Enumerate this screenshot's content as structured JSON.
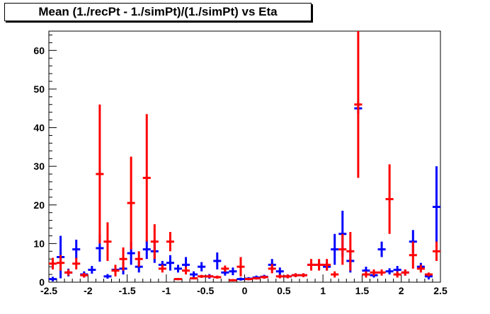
{
  "chart_data": {
    "type": "scatter",
    "title": "Mean (1./recPt - 1./simPt)/(1./simPt) vs Eta",
    "xlabel": "",
    "ylabel": "",
    "xlim": [
      -2.5,
      2.5
    ],
    "ylim": [
      0,
      65
    ],
    "x_ticks": [
      "-2.5",
      "-2",
      "-1.5",
      "-1",
      "-0.5",
      "0",
      "0.5",
      "1",
      "1.5",
      "2",
      "2.5"
    ],
    "y_ticks": [
      "0",
      "10",
      "20",
      "30",
      "40",
      "50",
      "60"
    ],
    "bin_width": 0.1,
    "grid": false,
    "legend": "none",
    "series": [
      {
        "color": "#0000ff",
        "points": [
          {
            "x": -2.45,
            "y": 0.8,
            "err": 0.6
          },
          {
            "x": -2.35,
            "y": 6.5,
            "err": 5.5
          },
          {
            "x": -2.25,
            "y": 2.5,
            "err": 1.0
          },
          {
            "x": -2.15,
            "y": 8.5,
            "err": 2.5
          },
          {
            "x": -2.05,
            "y": 2.0,
            "err": 0.8
          },
          {
            "x": -1.95,
            "y": 3.2,
            "err": 1.0
          },
          {
            "x": -1.85,
            "y": 8.8,
            "err": 3.5
          },
          {
            "x": -1.75,
            "y": 1.5,
            "err": 0.6
          },
          {
            "x": -1.65,
            "y": 3.2,
            "err": 1.0
          },
          {
            "x": -1.55,
            "y": 3.5,
            "err": 1.5
          },
          {
            "x": -1.45,
            "y": 7.5,
            "err": 3.0
          },
          {
            "x": -1.35,
            "y": 4.0,
            "err": 1.5
          },
          {
            "x": -1.25,
            "y": 8.5,
            "err": 2.5
          },
          {
            "x": -1.15,
            "y": 8.0,
            "err": 3.0
          },
          {
            "x": -1.05,
            "y": 4.5,
            "err": 1.0
          },
          {
            "x": -0.95,
            "y": 5.0,
            "err": 2.0
          },
          {
            "x": -0.85,
            "y": 3.5,
            "err": 1.0
          },
          {
            "x": -0.75,
            "y": 4.5,
            "err": 2.0
          },
          {
            "x": -0.65,
            "y": 2.0,
            "err": 0.8
          },
          {
            "x": -0.55,
            "y": 4.0,
            "err": 1.2
          },
          {
            "x": -0.45,
            "y": 1.5,
            "err": 0.6
          },
          {
            "x": -0.35,
            "y": 5.5,
            "err": 2.2
          },
          {
            "x": -0.25,
            "y": 2.5,
            "err": 0.8
          },
          {
            "x": -0.15,
            "y": 2.8,
            "err": 1.0
          },
          {
            "x": -0.05,
            "y": 0.8,
            "err": 0.4
          },
          {
            "x": 0.05,
            "y": 0.9,
            "err": 0.4
          },
          {
            "x": 0.15,
            "y": 1.2,
            "err": 0.5
          },
          {
            "x": 0.25,
            "y": 1.4,
            "err": 0.5
          },
          {
            "x": 0.35,
            "y": 4.5,
            "err": 1.5
          },
          {
            "x": 0.45,
            "y": 2.8,
            "err": 1.0
          },
          {
            "x": 0.55,
            "y": 1.5,
            "err": 0.5
          },
          {
            "x": 0.65,
            "y": 1.8,
            "err": 0.5
          },
          {
            "x": 0.75,
            "y": 1.8,
            "err": 0.5
          },
          {
            "x": 0.85,
            "y": 4.5,
            "err": 1.0
          },
          {
            "x": 0.95,
            "y": 4.5,
            "err": 1.0
          },
          {
            "x": 1.05,
            "y": 4.0,
            "err": 1.0
          },
          {
            "x": 1.15,
            "y": 8.5,
            "err": 4.0
          },
          {
            "x": 1.25,
            "y": 12.5,
            "err": 6.0
          },
          {
            "x": 1.35,
            "y": 5.5,
            "err": 3.0
          },
          {
            "x": 1.45,
            "y": 45.0,
            "err": 1.5
          },
          {
            "x": 1.55,
            "y": 3.0,
            "err": 1.0
          },
          {
            "x": 1.65,
            "y": 1.8,
            "err": 0.6
          },
          {
            "x": 1.75,
            "y": 8.5,
            "err": 2.0
          },
          {
            "x": 1.85,
            "y": 2.8,
            "err": 0.8
          },
          {
            "x": 1.95,
            "y": 3.2,
            "err": 1.0
          },
          {
            "x": 2.05,
            "y": 2.5,
            "err": 0.8
          },
          {
            "x": 2.15,
            "y": 10.5,
            "err": 3.0
          },
          {
            "x": 2.25,
            "y": 4.0,
            "err": 1.0
          },
          {
            "x": 2.35,
            "y": 1.5,
            "err": 0.8
          },
          {
            "x": 2.45,
            "y": 19.5,
            "err": 10.5
          }
        ]
      },
      {
        "color": "#ff0000",
        "points": [
          {
            "x": -2.45,
            "y": 4.8,
            "err": 1.5
          },
          {
            "x": -2.35,
            "y": 5.0,
            "err": 2.0
          },
          {
            "x": -2.25,
            "y": 2.5,
            "err": 0.8
          },
          {
            "x": -2.15,
            "y": 4.8,
            "err": 1.5
          },
          {
            "x": -2.05,
            "y": 1.8,
            "err": 0.6
          },
          {
            "x": -1.85,
            "y": 28.0,
            "err": 18.0
          },
          {
            "x": -1.75,
            "y": 10.5,
            "err": 5.0
          },
          {
            "x": -1.65,
            "y": 3.0,
            "err": 1.5
          },
          {
            "x": -1.55,
            "y": 6.0,
            "err": 3.0
          },
          {
            "x": -1.45,
            "y": 20.5,
            "err": 12.0
          },
          {
            "x": -1.35,
            "y": 6.0,
            "err": 2.0
          },
          {
            "x": -1.25,
            "y": 27.0,
            "err": 16.5
          },
          {
            "x": -1.15,
            "y": 10.5,
            "err": 4.5
          },
          {
            "x": -1.05,
            "y": 3.5,
            "err": 1.0
          },
          {
            "x": -0.95,
            "y": 10.5,
            "err": 2.5
          },
          {
            "x": -0.85,
            "y": 0.8,
            "err": 0.3
          },
          {
            "x": -0.75,
            "y": 3.0,
            "err": 1.0
          },
          {
            "x": -0.65,
            "y": 1.0,
            "err": 0.3
          },
          {
            "x": -0.55,
            "y": 1.5,
            "err": 0.4
          },
          {
            "x": -0.45,
            "y": 1.5,
            "err": 0.4
          },
          {
            "x": -0.35,
            "y": 1.3,
            "err": 0.4
          },
          {
            "x": -0.25,
            "y": 3.5,
            "err": 0.8
          },
          {
            "x": -0.15,
            "y": 0.5,
            "err": 0.3
          },
          {
            "x": -0.05,
            "y": 4.0,
            "err": 2.5
          },
          {
            "x": 0.05,
            "y": 0.8,
            "err": 0.3
          },
          {
            "x": 0.15,
            "y": 1.0,
            "err": 0.3
          },
          {
            "x": 0.25,
            "y": 1.3,
            "err": 0.4
          },
          {
            "x": 0.35,
            "y": 3.5,
            "err": 1.2
          },
          {
            "x": 0.45,
            "y": 1.5,
            "err": 0.5
          },
          {
            "x": 0.55,
            "y": 1.5,
            "err": 0.5
          },
          {
            "x": 0.65,
            "y": 1.8,
            "err": 0.5
          },
          {
            "x": 0.75,
            "y": 1.8,
            "err": 0.5
          },
          {
            "x": 0.85,
            "y": 4.5,
            "err": 1.5
          },
          {
            "x": 0.95,
            "y": 4.5,
            "err": 1.5
          },
          {
            "x": 1.05,
            "y": 4.5,
            "err": 1.5
          },
          {
            "x": 1.15,
            "y": 2.0,
            "err": 0.8
          },
          {
            "x": 1.25,
            "y": 8.5,
            "err": 4.0
          },
          {
            "x": 1.35,
            "y": 8.0,
            "err": 5.0
          },
          {
            "x": 1.45,
            "y": 46.0,
            "err": 19.0
          },
          {
            "x": 1.55,
            "y": 2.0,
            "err": 0.8
          },
          {
            "x": 1.65,
            "y": 2.5,
            "err": 0.8
          },
          {
            "x": 1.75,
            "y": 2.5,
            "err": 0.8
          },
          {
            "x": 1.85,
            "y": 21.5,
            "err": 9.0
          },
          {
            "x": 1.95,
            "y": 2.0,
            "err": 0.8
          },
          {
            "x": 2.05,
            "y": 2.5,
            "err": 0.8
          },
          {
            "x": 2.15,
            "y": 7.0,
            "err": 3.5
          },
          {
            "x": 2.25,
            "y": 3.5,
            "err": 1.0
          },
          {
            "x": 2.35,
            "y": 2.0,
            "err": 0.5
          },
          {
            "x": 2.45,
            "y": 8.0,
            "err": 2.5
          }
        ]
      }
    ]
  }
}
